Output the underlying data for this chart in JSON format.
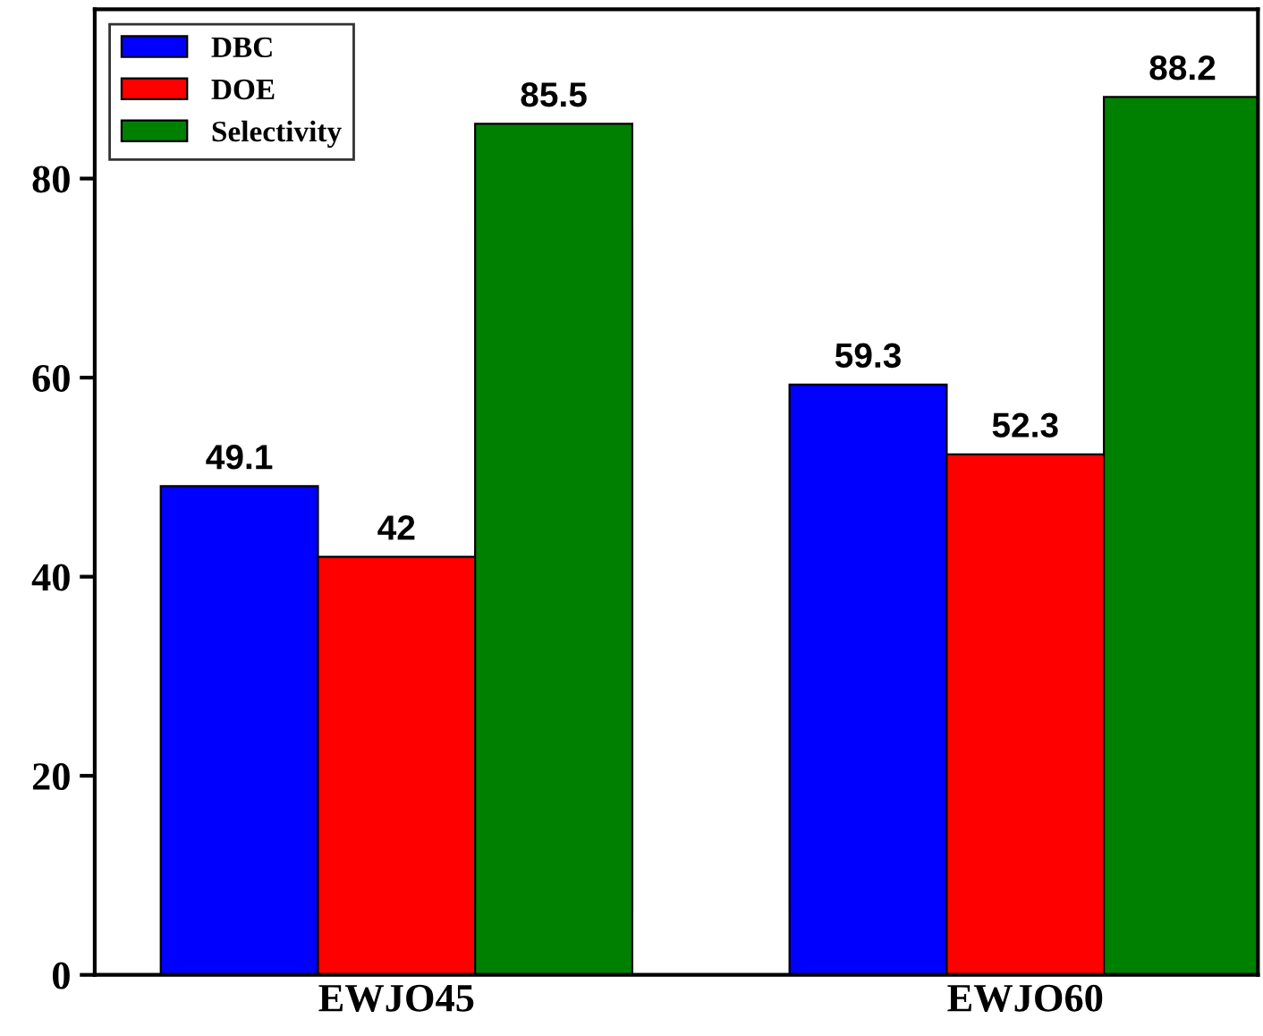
{
  "chart_data": {
    "type": "bar",
    "categories": [
      "EWJO45",
      "EWJO60"
    ],
    "series": [
      {
        "name": "DBC",
        "color": "#0000ff",
        "values": [
          49.1,
          59.3
        ]
      },
      {
        "name": "DOE",
        "color": "#ff0000",
        "values": [
          42,
          52.3
        ]
      },
      {
        "name": "Selectivity",
        "color": "#008000",
        "values": [
          85.5,
          88.2
        ]
      }
    ],
    "ylim": [
      0,
      97
    ],
    "yticks": [
      0,
      20,
      40,
      60,
      80
    ],
    "data_labels": true,
    "legend": "top left",
    "grid": false
  }
}
